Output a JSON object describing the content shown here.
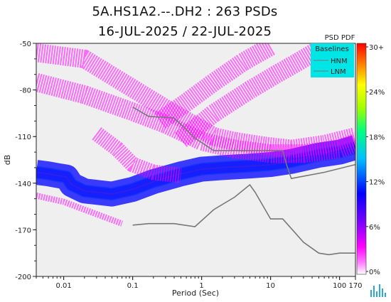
{
  "title_line1": "5A.HS1A2.--.DH2 : 263 PSDs",
  "title_line2": "16-JUL-2025 / 22-JUL-2025",
  "colors": {
    "background": "#efefef",
    "baseline": "#777777",
    "legend_bg": "#00e5e5",
    "cloud": "#ff00ff"
  },
  "chart_data": {
    "type": "heatmap",
    "title": "5A.HS1A2.--.DH2 : 263 PSDs",
    "subtitle": "16-JUL-2025 / 22-JUL-2025",
    "xlabel": "Period (Sec)",
    "ylabel": "dB",
    "x_scale": "log",
    "xlim": [
      0.004,
      170
    ],
    "ylim": [
      -200,
      -50
    ],
    "x_ticks": [
      {
        "value": 0.01,
        "label": "0.01"
      },
      {
        "value": 0.1,
        "label": "0.1"
      },
      {
        "value": 1,
        "label": "1"
      },
      {
        "value": 10,
        "label": "10"
      },
      {
        "value": 100,
        "label": "100"
      },
      {
        "value": 170,
        "label": "170"
      }
    ],
    "y_ticks": [
      {
        "value": -50,
        "label": "-50"
      },
      {
        "value": -80,
        "label": "-80"
      },
      {
        "value": -110,
        "label": "-110"
      },
      {
        "value": -140,
        "label": "-140"
      },
      {
        "value": -170,
        "label": "-170"
      },
      {
        "value": -200,
        "label": "-200"
      }
    ],
    "colorbar": {
      "title": "PSD PDF",
      "ticks": [
        "30+",
        "24%",
        "18%",
        "12%",
        "6%",
        "0%"
      ],
      "range": [
        0,
        30
      ]
    },
    "legend": {
      "title": "Baselines",
      "placement": "top-right",
      "entries": [
        "HNM",
        "LNM"
      ]
    },
    "baselines": [
      {
        "name": "HNM",
        "points": [
          [
            0.1,
            -91
          ],
          [
            0.17,
            -97
          ],
          [
            0.4,
            -98
          ],
          [
            0.8,
            -111
          ],
          [
            1.5,
            -119
          ],
          [
            4,
            -119
          ],
          [
            8,
            -119
          ],
          [
            15,
            -119
          ],
          [
            17,
            -128
          ],
          [
            20,
            -137
          ],
          [
            60,
            -133
          ],
          [
            170,
            -128
          ]
        ]
      },
      {
        "name": "LNM",
        "points": [
          [
            0.1,
            -167
          ],
          [
            0.17,
            -166
          ],
          [
            0.4,
            -166
          ],
          [
            0.8,
            -168
          ],
          [
            1.5,
            -157
          ],
          [
            3,
            -149
          ],
          [
            5,
            -141
          ],
          [
            6,
            -146
          ],
          [
            10,
            -163
          ],
          [
            15,
            -163
          ],
          [
            30,
            -178
          ],
          [
            50,
            -185
          ],
          [
            70,
            -186
          ],
          [
            100,
            -185
          ],
          [
            170,
            -185
          ]
        ]
      }
    ],
    "density_bands": [
      {
        "points": [
          [
            0.004,
            -133
          ],
          [
            0.006,
            -134
          ],
          [
            0.008,
            -135
          ],
          [
            0.011,
            -136
          ],
          [
            0.013,
            -141
          ],
          [
            0.02,
            -145
          ],
          [
            0.05,
            -147
          ],
          [
            0.1,
            -144
          ],
          [
            0.2,
            -139
          ],
          [
            0.5,
            -134
          ],
          [
            1,
            -131
          ],
          [
            2,
            -130
          ],
          [
            5,
            -129
          ],
          [
            10,
            -128
          ],
          [
            20,
            -126
          ],
          [
            50,
            -122
          ],
          [
            100,
            -120
          ],
          [
            170,
            -117
          ]
        ],
        "spread": 3,
        "level": 30
      },
      {
        "points": [
          [
            0.004,
            -133
          ],
          [
            0.006,
            -134
          ],
          [
            0.008,
            -135
          ],
          [
            0.011,
            -136
          ],
          [
            0.013,
            -141
          ],
          [
            0.02,
            -145
          ],
          [
            0.05,
            -147
          ],
          [
            0.1,
            -144
          ],
          [
            0.2,
            -139
          ],
          [
            0.5,
            -134
          ],
          [
            1,
            -131
          ],
          [
            2,
            -130
          ],
          [
            5,
            -129
          ],
          [
            10,
            -128
          ],
          [
            20,
            -126
          ],
          [
            50,
            -122
          ],
          [
            100,
            -120
          ],
          [
            170,
            -117
          ]
        ],
        "spread": 8,
        "level": 6
      },
      {
        "points": [
          [
            0.004,
            -56
          ],
          [
            0.02,
            -60
          ],
          [
            0.1,
            -79
          ],
          [
            0.3,
            -92
          ],
          [
            0.8,
            -103
          ],
          [
            1.5,
            -110
          ],
          [
            3,
            -113
          ],
          [
            8,
            -116
          ],
          [
            20,
            -118
          ],
          [
            60,
            -115
          ],
          [
            170,
            -110
          ]
        ],
        "spread": 6,
        "level": 3
      },
      {
        "points": [
          [
            0.004,
            -75
          ],
          [
            0.02,
            -83
          ],
          [
            0.1,
            -94
          ],
          [
            0.3,
            -102
          ],
          [
            1,
            -113
          ],
          [
            3,
            -118
          ],
          [
            10,
            -121
          ],
          [
            30,
            -121
          ],
          [
            100,
            -118
          ],
          [
            170,
            -114
          ]
        ],
        "spread": 6,
        "level": 3
      },
      {
        "points": [
          [
            0.25,
            -100
          ],
          [
            0.6,
            -88
          ],
          [
            1.5,
            -75
          ],
          [
            4,
            -62
          ],
          [
            10,
            -52
          ]
        ],
        "spread": 6,
        "level": 3
      },
      {
        "points": [
          [
            0.5,
            -112
          ],
          [
            1.5,
            -95
          ],
          [
            5,
            -80
          ],
          [
            12,
            -70
          ],
          [
            25,
            -62
          ],
          [
            60,
            -52
          ]
        ],
        "spread": 6,
        "level": 3
      },
      {
        "points": [
          [
            0.03,
            -108
          ],
          [
            0.06,
            -118
          ],
          [
            0.1,
            -128
          ],
          [
            0.2,
            -133
          ],
          [
            0.5,
            -135
          ]
        ],
        "spread": 5,
        "level": 3
      },
      {
        "points": [
          [
            0.004,
            -148
          ],
          [
            0.01,
            -152
          ],
          [
            0.02,
            -157
          ],
          [
            0.04,
            -162
          ],
          [
            0.07,
            -166
          ]
        ],
        "spread": 2,
        "level": 2
      }
    ]
  }
}
